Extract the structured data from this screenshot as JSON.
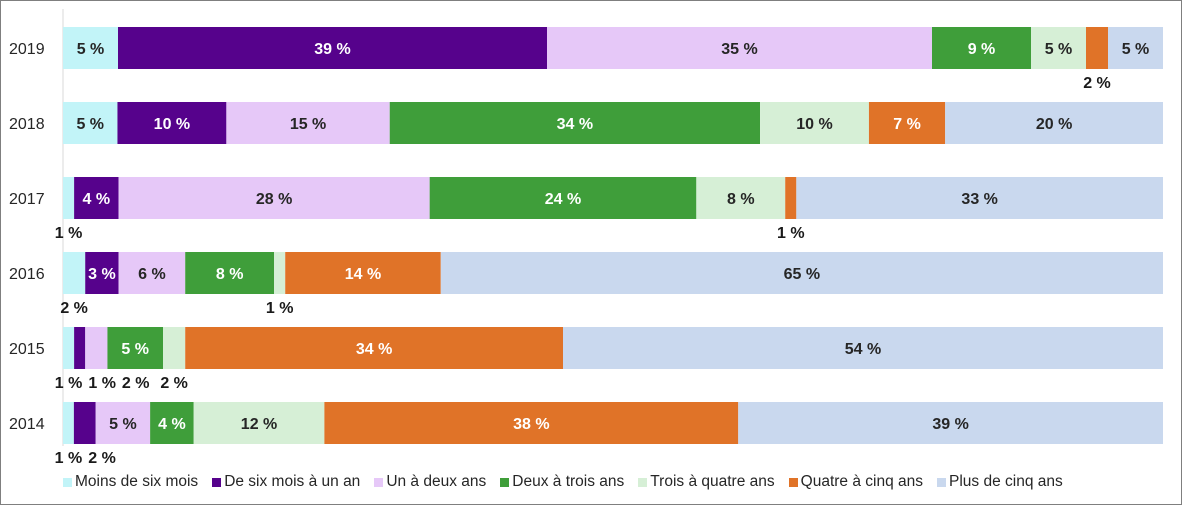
{
  "chart_data": {
    "type": "bar",
    "orientation": "horizontal",
    "stacked": true,
    "title": "",
    "xlabel": "",
    "ylabel": "",
    "xlim": [
      0,
      100
    ],
    "unit": " %",
    "legend_position": "bottom",
    "categories": [
      "2019",
      "2018",
      "2017",
      "2016",
      "2015",
      "2014"
    ],
    "series": [
      {
        "name": "Moins de six mois",
        "color": "#C2F4F8",
        "label_color": "#262626",
        "values": [
          5,
          5,
          1,
          2,
          1,
          1
        ]
      },
      {
        "name": "De six mois à un an",
        "color": "#56028C",
        "label_color": "#FFFFFF",
        "values": [
          39,
          10,
          4,
          3,
          1,
          2
        ]
      },
      {
        "name": "Un à deux ans",
        "color": "#E6C8F8",
        "label_color": "#262626",
        "values": [
          35,
          15,
          28,
          6,
          2,
          5
        ]
      },
      {
        "name": "Deux à trois ans",
        "color": "#3F9E3A",
        "label_color": "#FFFFFF",
        "values": [
          9,
          34,
          24,
          8,
          5,
          4
        ]
      },
      {
        "name": "Trois à quatre ans",
        "color": "#D6EFD6",
        "label_color": "#262626",
        "values": [
          5,
          10,
          8,
          1,
          2,
          12
        ]
      },
      {
        "name": "Quatre à cinq ans",
        "color": "#E07328",
        "label_color": "#FFFFFF",
        "values": [
          2,
          7,
          1,
          14,
          34,
          38
        ]
      },
      {
        "name": "Plus de cinq ans",
        "color": "#C9D8EE",
        "label_color": "#262626",
        "values": [
          5,
          20,
          33,
          65,
          54,
          39
        ]
      }
    ]
  }
}
